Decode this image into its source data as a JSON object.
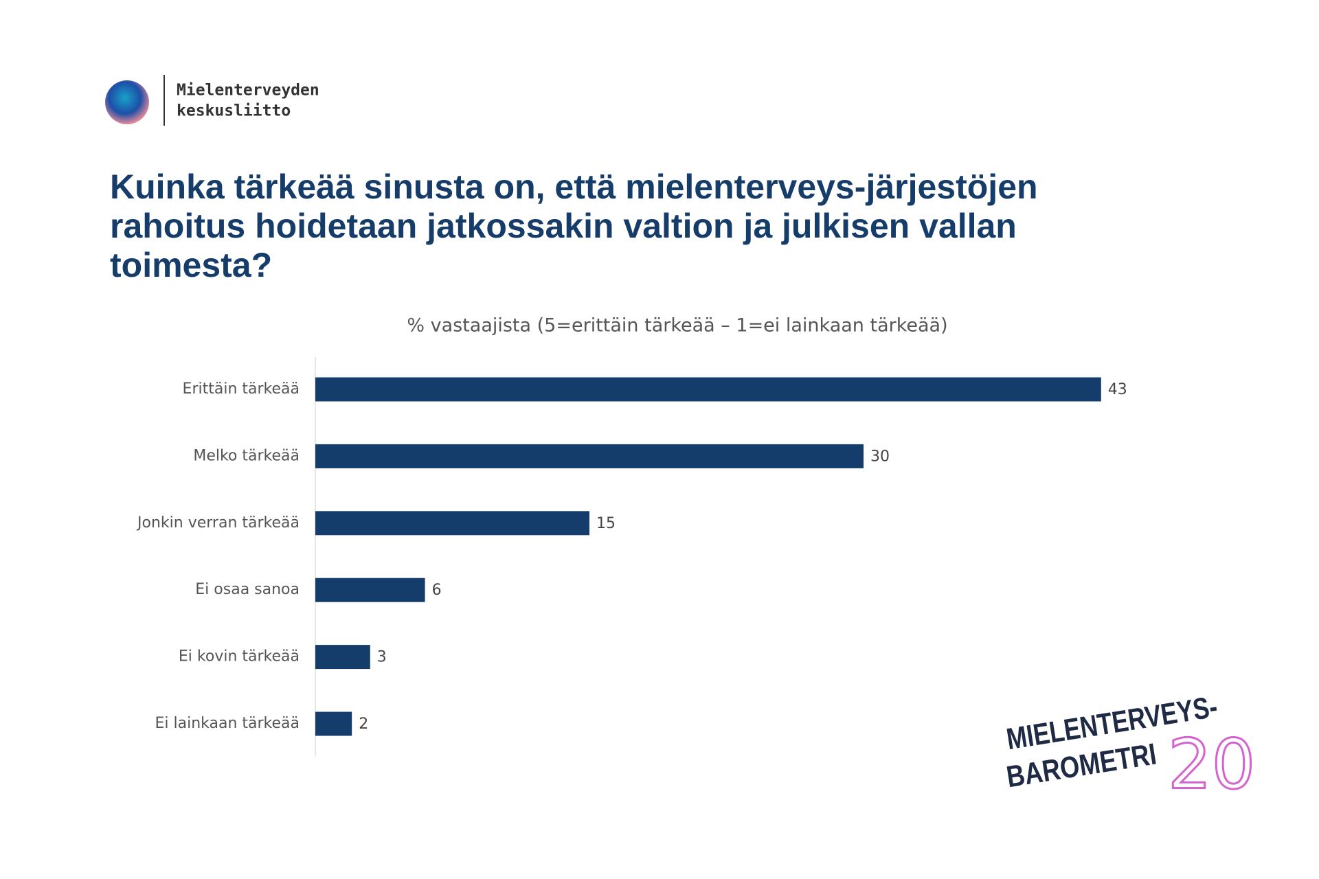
{
  "logo": {
    "line1": "Mielenterveyden",
    "line2": "keskusliitto"
  },
  "badge": {
    "line1": "MIELENTERVEYS-",
    "line2": "BAROMETRI",
    "number": "20"
  },
  "chart_data": {
    "type": "bar",
    "orientation": "horizontal",
    "title": "Kuinka tärkeää sinusta on, että mielenterveys-järjestöjen rahoitus hoidetaan jatkossakin valtion ja julkisen vallan toimesta?",
    "subtitle": "% vastaajista (5=erittäin tärkeää – 1=ei lainkaan tärkeää)",
    "categories": [
      "Erittäin tärkeää",
      "Melko tärkeää",
      "Jonkin verran tärkeää",
      "Ei osaa sanoa",
      "Ei kovin tärkeää",
      "Ei lainkaan tärkeää"
    ],
    "values": [
      43,
      30,
      15,
      6,
      3,
      2
    ],
    "color": "#143d6b",
    "xlim": [
      0,
      50
    ]
  }
}
